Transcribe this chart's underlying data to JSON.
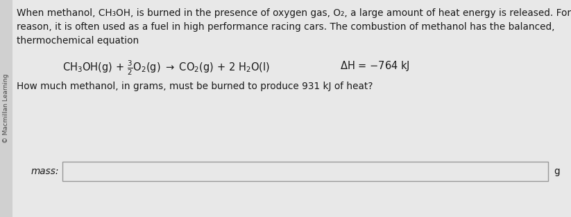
{
  "bg_color": "#e8e8e8",
  "text_color": "#1a1a1a",
  "sidebar_text": "© Macmillan Learning",
  "sidebar_bg": "#d0d0d0",
  "line1": "When methanol, CH₃OH, is burned in the presence of oxygen gas, O₂, a large amount of heat energy is released. For this",
  "line2": "reason, it is often used as a fuel in high performance racing cars. The combustion of methanol has the balanced,",
  "line3": "thermochemical equation",
  "question": "How much methanol, in grams, must be burned to produce 931 kJ of heat?",
  "mass_label": "mass:",
  "unit_label": "g",
  "input_box_color": "#e8e8e8",
  "input_box_border": "#999999",
  "font_size_main": 9.8,
  "font_size_eq": 10.5,
  "font_size_sidebar": 6.5
}
